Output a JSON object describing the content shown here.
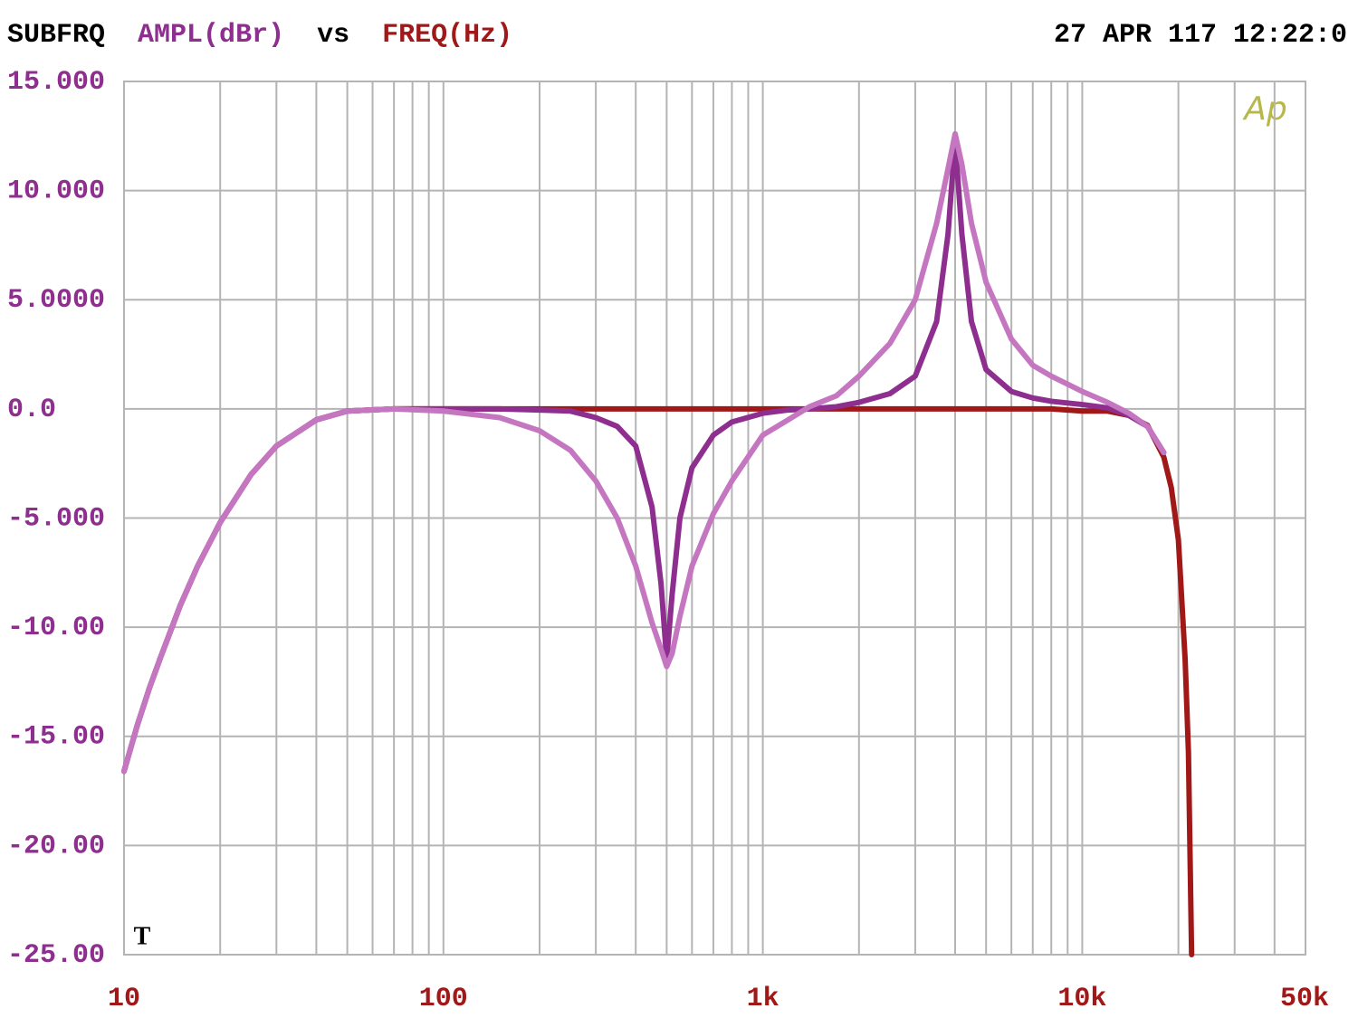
{
  "chart_data": {
    "type": "line",
    "title": "SUBFRQ",
    "y_label": "AMPL(dBr)",
    "connector": "vs",
    "x_label": "FREQ(Hz)",
    "timestamp": "27 APR 117 12:22:0",
    "logo": "Ap",
    "marker": "T",
    "y_label_color": "#8e2e8e",
    "x_label_color": "#a01818",
    "log_x": true,
    "grid": true,
    "xlim": [
      10,
      50000
    ],
    "ylim": [
      -25,
      15
    ],
    "xticks": [
      10,
      100,
      {
        "value": 1000,
        "label": "1k"
      },
      {
        "value": 10000,
        "label": "10k"
      },
      {
        "value": 50000,
        "label": "50k"
      }
    ],
    "xgrid": [
      20,
      30,
      40,
      50,
      60,
      70,
      80,
      90,
      200,
      300,
      400,
      500,
      600,
      700,
      800,
      900,
      2000,
      3000,
      4000,
      5000,
      6000,
      7000,
      8000,
      9000,
      20000,
      30000,
      40000
    ],
    "yticks": [
      {
        "value": 15,
        "label": "15.000"
      },
      {
        "value": 10,
        "label": "10.000"
      },
      {
        "value": 5,
        "label": "5.0000"
      },
      {
        "value": 0,
        "label": "0.0"
      },
      {
        "value": -5,
        "label": "-5.000"
      },
      {
        "value": -10,
        "label": "-10.00"
      },
      {
        "value": -15,
        "label": "-15.00"
      },
      {
        "value": -20,
        "label": "-20.00"
      },
      {
        "value": -25,
        "label": "-25.00"
      }
    ],
    "x": [
      10,
      11,
      12,
      13,
      15,
      17,
      20,
      25,
      30,
      40,
      50,
      70,
      100,
      150,
      200,
      250,
      300,
      350,
      400,
      450,
      480,
      500,
      520,
      550,
      600,
      700,
      800,
      1000,
      1200,
      1400,
      1700,
      2000,
      2500,
      3000,
      3500,
      3800,
      4000,
      4200,
      4500,
      5000,
      6000,
      7000,
      8000,
      10000,
      12000,
      14000,
      16000,
      18000,
      19000,
      20000,
      21000,
      21500,
      22000
    ],
    "series": [
      {
        "color": "#a01818",
        "values": [
          -16.6,
          -14.5,
          -12.8,
          -11.4,
          -9,
          -7.2,
          -5.2,
          -3,
          -1.7,
          -0.5,
          -0.1,
          0,
          0,
          0,
          0,
          0,
          0,
          0,
          0,
          0,
          0,
          0,
          0,
          0,
          0,
          0,
          0,
          0,
          0,
          0,
          0,
          0,
          0,
          0,
          0,
          0,
          0,
          0,
          0,
          0,
          0,
          0,
          0,
          -0.1,
          -0.1,
          -0.3,
          -0.75,
          -2.2,
          -3.6,
          -6,
          -11.5,
          -15.7,
          -25
        ]
      },
      {
        "color": "#8e2e8e",
        "values": [
          -16.6,
          -14.5,
          -12.8,
          -11.4,
          -9,
          -7.2,
          -5.2,
          -3,
          -1.7,
          -0.5,
          -0.1,
          0,
          0,
          0,
          -0.05,
          -0.1,
          -0.4,
          -0.8,
          -1.7,
          -4.5,
          -8,
          -11.5,
          -8.5,
          -5,
          -2.7,
          -1.2,
          -0.6,
          -0.2,
          -0.05,
          0,
          0.1,
          0.3,
          0.7,
          1.5,
          4,
          8,
          12.3,
          8,
          4,
          1.8,
          0.8,
          0.5,
          0.35,
          0.2,
          0.05,
          -0.3,
          -0.8,
          -2.0,
          null,
          null,
          null,
          null,
          null
        ]
      },
      {
        "color": "#c576c0",
        "values": [
          -16.6,
          -14.5,
          -12.8,
          -11.4,
          -9,
          -7.2,
          -5.2,
          -3,
          -1.7,
          -0.5,
          -0.1,
          0,
          -0.1,
          -0.4,
          -1.0,
          -1.9,
          -3.3,
          -5,
          -7.2,
          -9.8,
          -11,
          -11.8,
          -11.2,
          -9.5,
          -7.2,
          -4.8,
          -3.3,
          -1.2,
          -0.5,
          0.1,
          0.6,
          1.5,
          3,
          5,
          8.5,
          11,
          12.6,
          11.2,
          8.5,
          5.8,
          3.2,
          2,
          1.5,
          0.8,
          0.3,
          -0.2,
          -0.8,
          -2.0,
          null,
          null,
          null,
          null,
          null
        ]
      }
    ]
  }
}
